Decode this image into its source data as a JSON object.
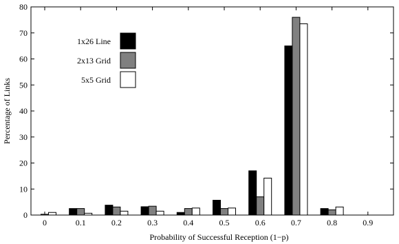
{
  "chart_data": {
    "type": "bar",
    "xlabel": "Probability of Successful Reception (1−p)",
    "ylabel": "Percentage of Links",
    "categories": [
      "0",
      "0.1",
      "0.2",
      "0.3",
      "0.4",
      "0.5",
      "0.6",
      "0.7",
      "0.8"
    ],
    "x_tick_labels": [
      "0",
      "0.1",
      "0.2",
      "0.3",
      "0.4",
      "0.5",
      "0.6",
      "0.7",
      "0.8",
      "0.9"
    ],
    "y_tick_labels": [
      "0",
      "10",
      "20",
      "30",
      "40",
      "50",
      "60",
      "70",
      "80"
    ],
    "ylim": [
      0,
      80
    ],
    "grid": false,
    "legend_position": "top-left",
    "series": [
      {
        "name": "1x26 Line",
        "color": "#000000",
        "values": [
          0,
          2.5,
          3.8,
          3.2,
          1.0,
          5.7,
          17.0,
          65.0,
          2.5
        ]
      },
      {
        "name": "2x13 Grid",
        "color": "#808080",
        "values": [
          0.3,
          2.5,
          3.1,
          3.4,
          2.5,
          2.5,
          7.0,
          76.0,
          2.0
        ]
      },
      {
        "name": "5x5 Grid",
        "color": "#ffffff",
        "values": [
          1.0,
          0.7,
          1.5,
          1.5,
          2.7,
          2.7,
          14.2,
          73.5,
          3.1
        ]
      }
    ]
  }
}
